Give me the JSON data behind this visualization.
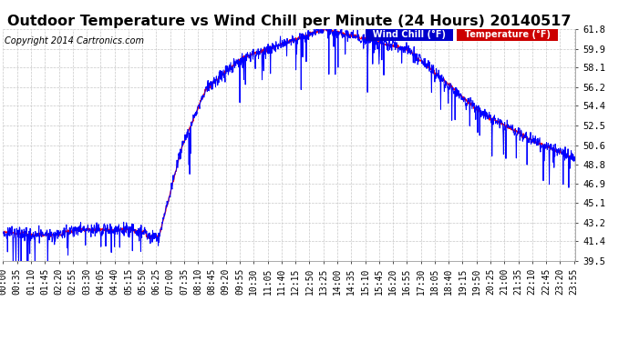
{
  "title": "Outdoor Temperature vs Wind Chill per Minute (24 Hours) 20140517",
  "copyright": "Copyright 2014 Cartronics.com",
  "legend_wind_chill": "Wind Chill (°F)",
  "legend_temperature": "Temperature (°F)",
  "wind_chill_color": "#0000ff",
  "temperature_color": "#ff0000",
  "legend_wc_bg": "#0000cc",
  "legend_temp_bg": "#cc0000",
  "background_color": "#ffffff",
  "plot_bg_color": "#ffffff",
  "grid_color": "#c8c8c8",
  "ylim": [
    39.5,
    61.8
  ],
  "yticks": [
    39.5,
    41.4,
    43.2,
    45.1,
    46.9,
    48.8,
    50.6,
    52.5,
    54.4,
    56.2,
    58.1,
    59.9,
    61.8
  ],
  "num_minutes": 1440,
  "title_fontsize": 11.5,
  "axis_fontsize": 7.5,
  "copyright_fontsize": 7,
  "tick_interval": 35
}
